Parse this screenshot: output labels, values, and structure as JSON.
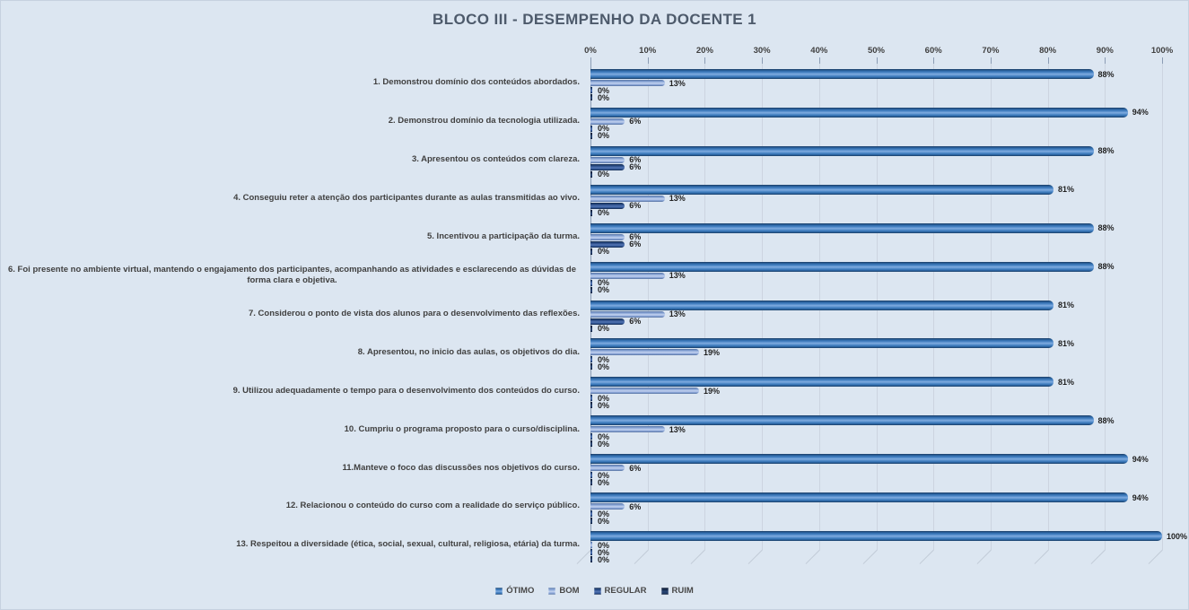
{
  "background": "#dce6f1",
  "chart_data": {
    "type": "bar",
    "orientation": "horizontal",
    "title": "BLOCO III - DESEMPENHO DA DOCENTE 1",
    "categories": [
      "1. Demonstrou domínio dos conteúdos abordados.",
      "2. Demonstrou domínio da tecnologia utilizada.",
      "3. Apresentou os conteúdos com clareza.",
      "4. Conseguiu reter a atenção dos participantes durante as aulas transmitidas ao vivo.",
      "5. Incentivou a participação da turma.",
      "6. Foi presente no ambiente virtual, mantendo o engajamento dos participantes, acompanhando as atividades e esclarecendo as dúvidas de forma clara e objetiva.",
      "7. Considerou o ponto de vista dos alunos para o desenvolvimento das reflexões.",
      "8. Apresentou, no inicio das aulas, os objetivos do dia.",
      "9. Utilizou adequadamente o tempo para o desenvolvimento dos conteúdos do curso.",
      "10. Cumpriu o programa proposto para o curso/disciplina.",
      "11.Manteve o foco das discussões nos objetivos do curso.",
      "12. Relacionou o conteúdo do curso com a realidade do serviço público.",
      "13. Respeitou a diversidade (ética, social, sexual, cultural, religiosa, etária) da turma."
    ],
    "series": [
      {
        "name": "ÓTIMO",
        "color": "#2e75b6",
        "values": [
          88,
          94,
          88,
          81,
          88,
          88,
          81,
          81,
          81,
          88,
          94,
          94,
          100
        ]
      },
      {
        "name": "BOM",
        "color": "#8faadc",
        "values": [
          13,
          6,
          6,
          13,
          6,
          13,
          13,
          19,
          19,
          13,
          6,
          6,
          0
        ]
      },
      {
        "name": "REGULAR",
        "color": "#2f5597",
        "values": [
          0,
          0,
          6,
          6,
          6,
          0,
          6,
          0,
          0,
          0,
          0,
          0,
          0
        ]
      },
      {
        "name": "RUIM",
        "color": "#1f3864",
        "values": [
          0,
          0,
          0,
          0,
          0,
          0,
          0,
          0,
          0,
          0,
          0,
          0,
          0
        ]
      }
    ],
    "xlim": [
      0,
      100
    ],
    "x_tick_labels": [
      "0%",
      "10%",
      "20%",
      "30%",
      "40%",
      "50%",
      "60%",
      "70%",
      "80%",
      "90%",
      "100%"
    ],
    "value_labels": true,
    "value_label_format": "percent",
    "grid": true,
    "legend_position": "bottom"
  }
}
